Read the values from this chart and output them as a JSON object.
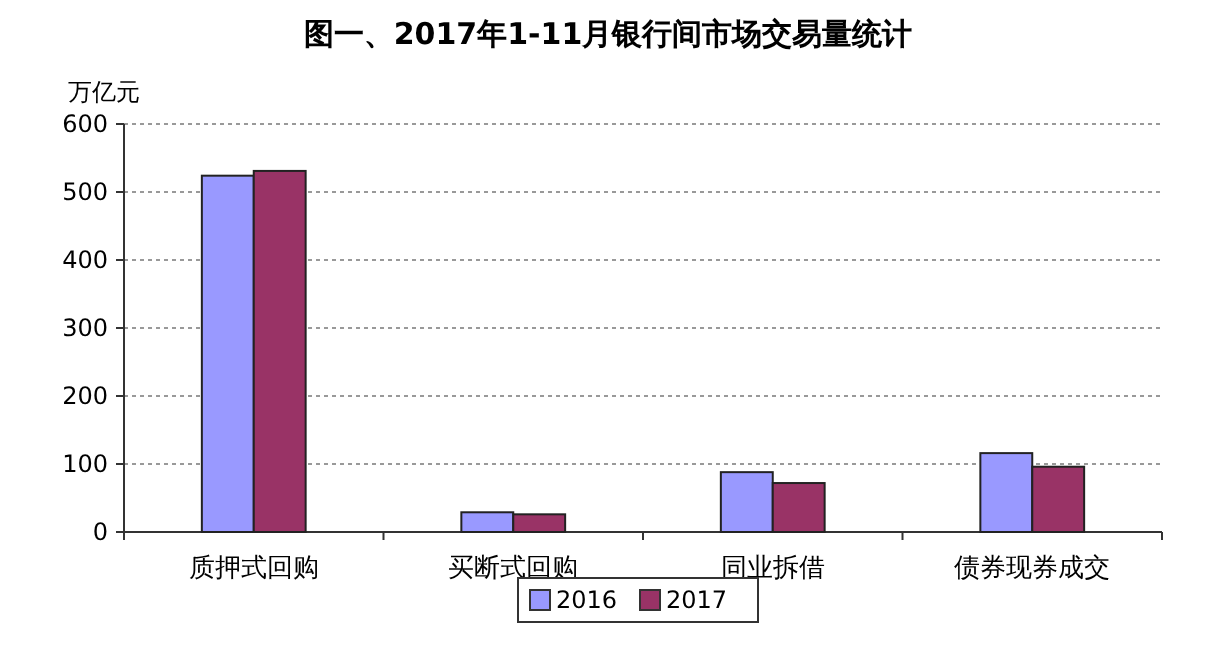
{
  "chart_data": {
    "type": "bar",
    "title": "图一、2017年1-11月银行间市场交易量统计",
    "ylabel": "万亿元",
    "categories": [
      "质押式回购",
      "买断式回购",
      "同业拆借",
      "债券现券成交"
    ],
    "series": [
      {
        "name": "2016",
        "color": "#9999ff",
        "values": [
          524,
          29,
          88,
          116
        ]
      },
      {
        "name": "2017",
        "color": "#993366",
        "values": [
          531,
          26,
          72,
          96
        ]
      }
    ],
    "ylim": [
      0,
      600
    ],
    "yticks": [
      0,
      100,
      200,
      300,
      400,
      500,
      600
    ],
    "grid": "y",
    "legend": "bottom"
  }
}
